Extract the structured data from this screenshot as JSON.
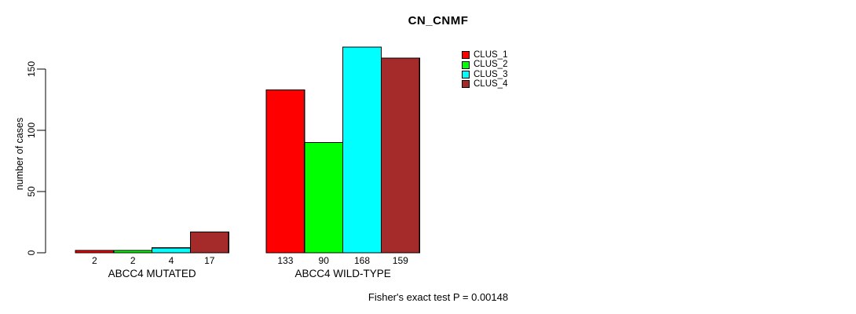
{
  "chart_data": {
    "type": "bar",
    "title": "CN_CNMF",
    "ylabel": "number of cases",
    "xlabel": "",
    "categories": [
      "ABCC4 MUTATED",
      "ABCC4 WILD-TYPE"
    ],
    "series": [
      {
        "name": "CLUS_1",
        "color": "#FF0000",
        "values": [
          2,
          133
        ]
      },
      {
        "name": "CLUS_2",
        "color": "#00FF00",
        "values": [
          2,
          90
        ]
      },
      {
        "name": "CLUS_3",
        "color": "#00FFFF",
        "values": [
          4,
          168
        ]
      },
      {
        "name": "CLUS_4",
        "color": "#A52A2A",
        "values": [
          17,
          159
        ]
      }
    ],
    "yticks": [
      0,
      50,
      100,
      150
    ],
    "ylim": [
      0,
      175
    ],
    "grid": false,
    "legend_position": "top-right",
    "bar_value_labels": true,
    "footnote": "Fisher's exact test P = 0.00148"
  }
}
